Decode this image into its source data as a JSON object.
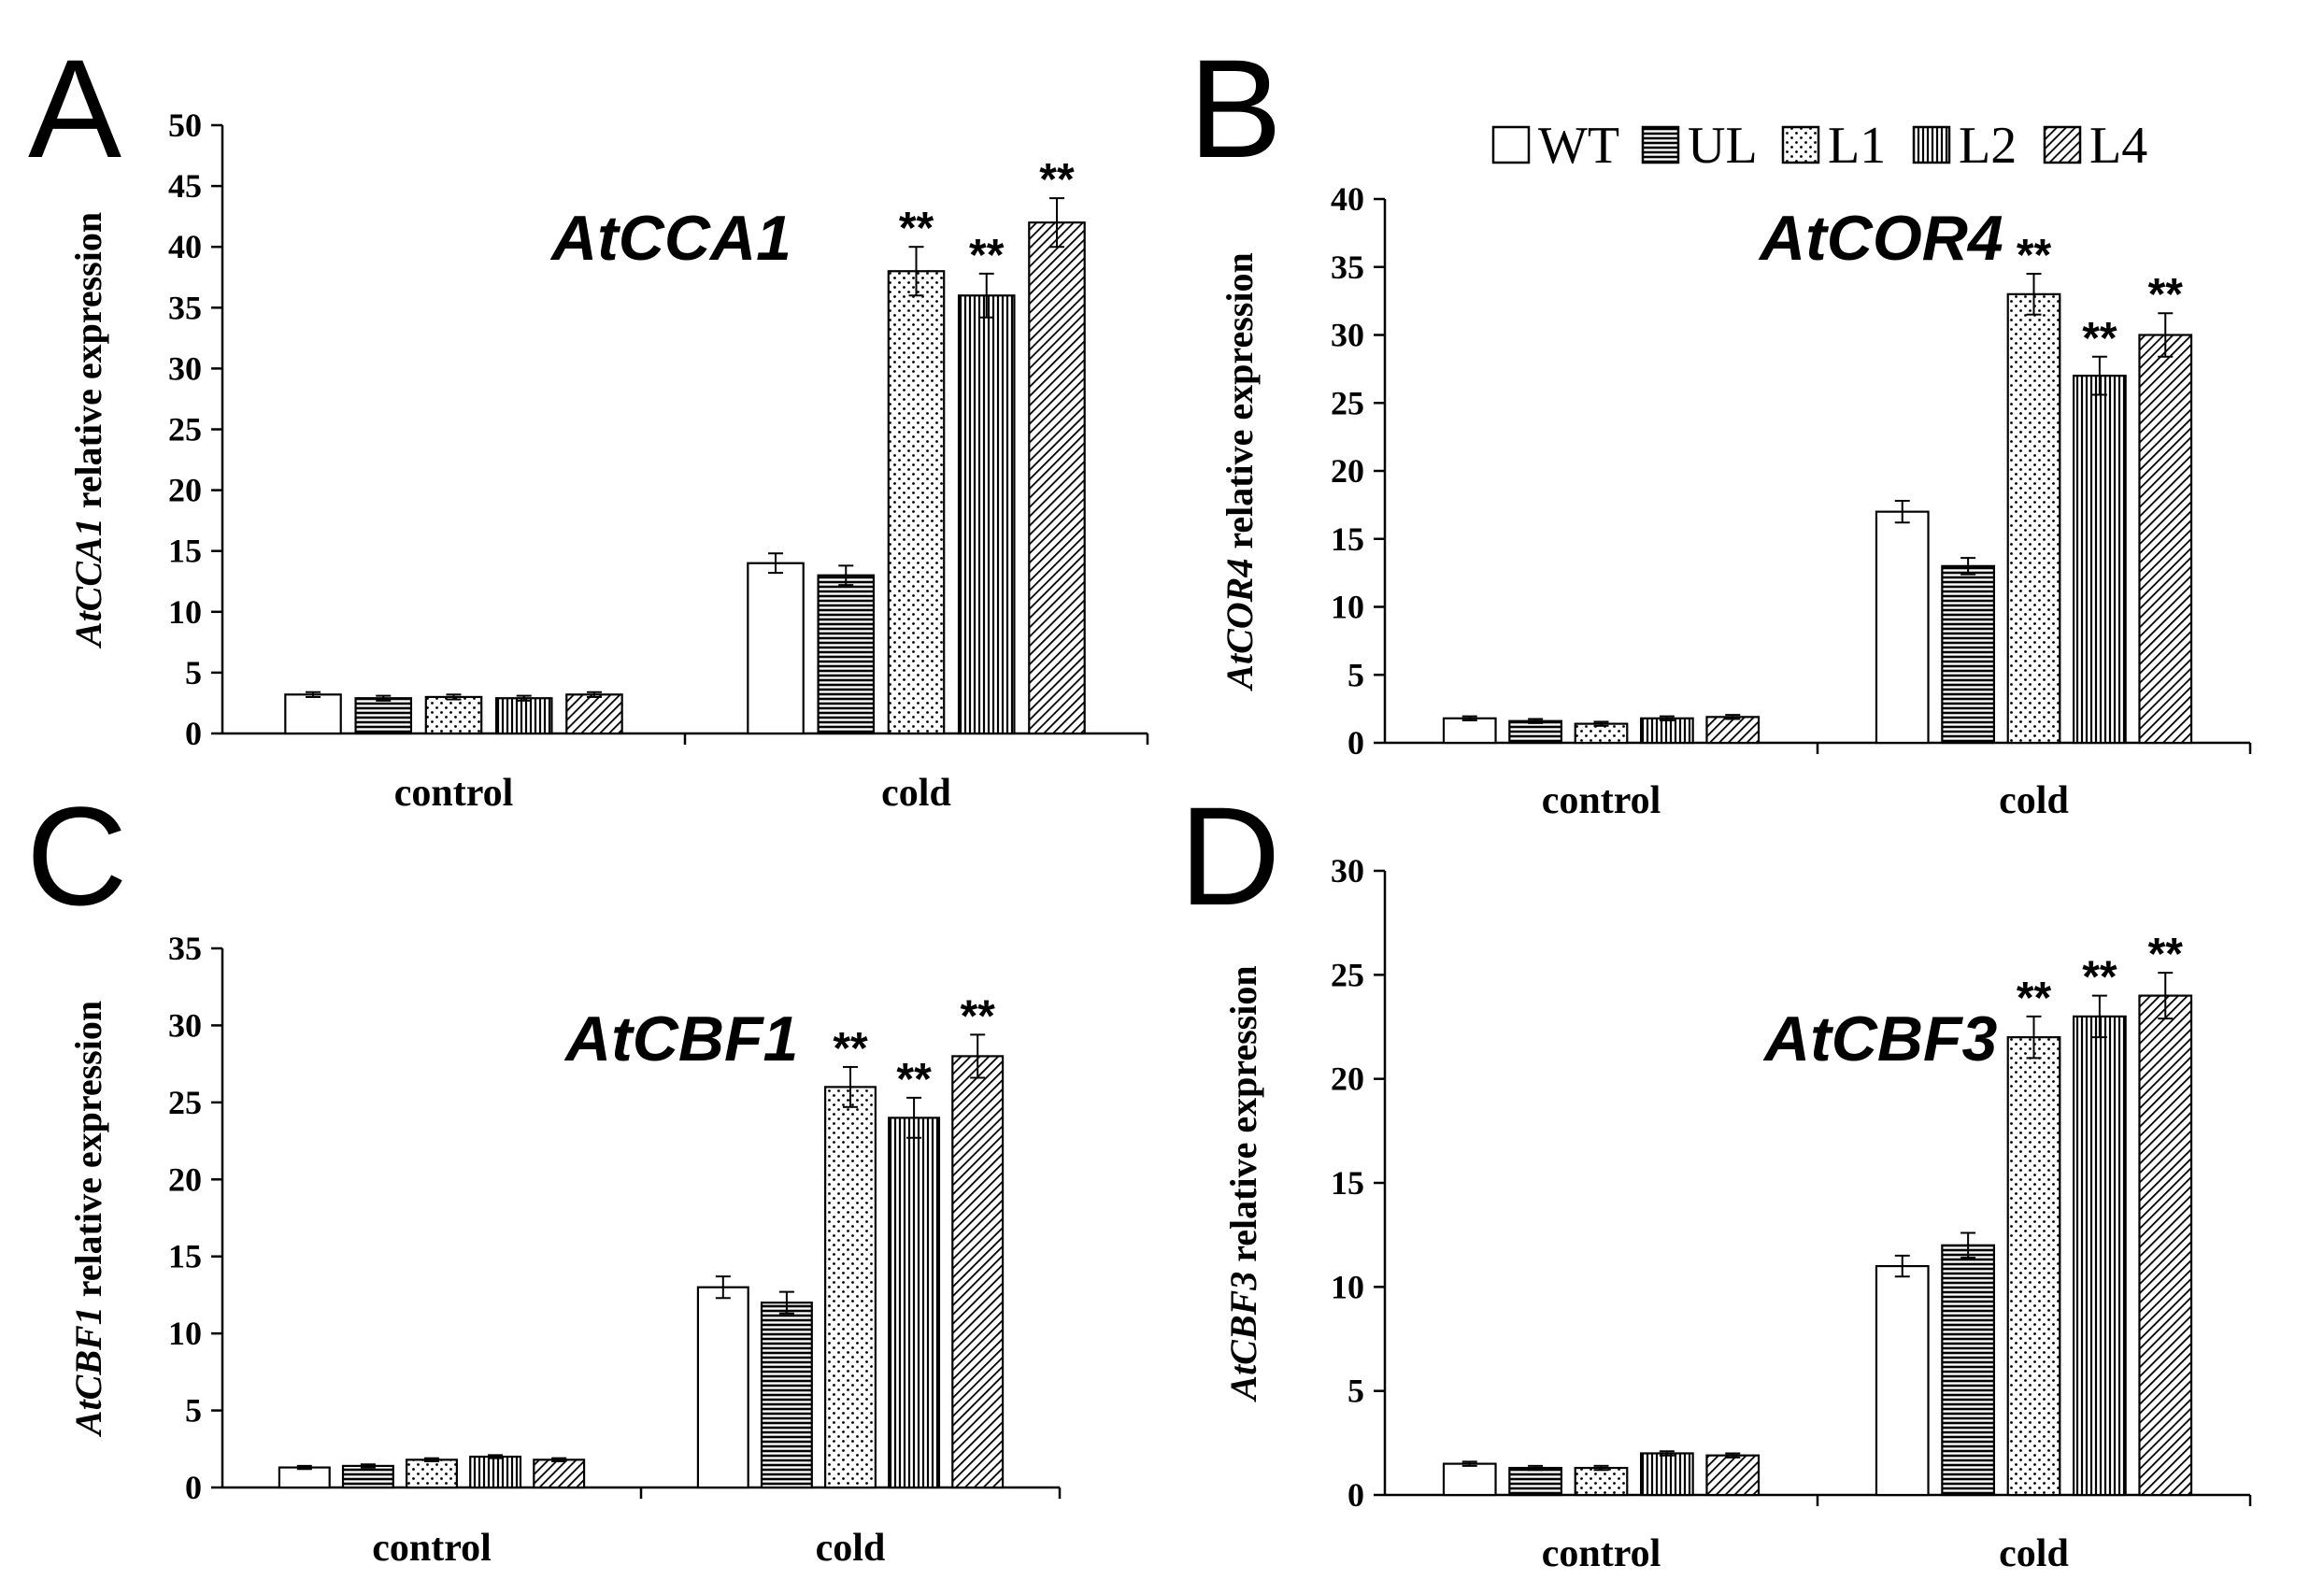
{
  "legend": [
    "WT",
    "UL",
    "L1",
    "L2",
    "L4"
  ],
  "chart_data": [
    {
      "panel": "A",
      "type": "bar",
      "title": "AtCCA1",
      "ylabel_gene": "AtCCA1",
      "ylabel_rest": " relative expression",
      "categories": [
        "control",
        "cold"
      ],
      "ylim": [
        0,
        50
      ],
      "yticks": [
        0,
        5,
        10,
        15,
        20,
        25,
        30,
        35,
        40,
        45,
        50
      ],
      "series": [
        {
          "name": "WT",
          "values": [
            3.2,
            14.0
          ],
          "errors": [
            0.2,
            0.8
          ],
          "sig": [
            "",
            ""
          ]
        },
        {
          "name": "UL",
          "values": [
            2.9,
            13.0
          ],
          "errors": [
            0.2,
            0.8
          ],
          "sig": [
            "",
            ""
          ]
        },
        {
          "name": "L1",
          "values": [
            3.0,
            38.0
          ],
          "errors": [
            0.2,
            2.0
          ],
          "sig": [
            "",
            "**"
          ]
        },
        {
          "name": "L2",
          "values": [
            2.9,
            36.0
          ],
          "errors": [
            0.2,
            1.8
          ],
          "sig": [
            "",
            "**"
          ]
        },
        {
          "name": "L4",
          "values": [
            3.2,
            42.0
          ],
          "errors": [
            0.2,
            2.0
          ],
          "sig": [
            "",
            "**"
          ]
        }
      ]
    },
    {
      "panel": "B",
      "type": "bar",
      "title": "AtCOR4",
      "ylabel_gene": "AtCOR4",
      "ylabel_rest": " relative expression",
      "categories": [
        "control",
        "cold"
      ],
      "ylim": [
        0,
        40
      ],
      "yticks": [
        0,
        5,
        10,
        15,
        20,
        25,
        30,
        35,
        40
      ],
      "series": [
        {
          "name": "WT",
          "values": [
            1.8,
            17.0
          ],
          "errors": [
            0.15,
            0.8
          ],
          "sig": [
            "",
            ""
          ]
        },
        {
          "name": "UL",
          "values": [
            1.6,
            13.0
          ],
          "errors": [
            0.15,
            0.6
          ],
          "sig": [
            "",
            ""
          ]
        },
        {
          "name": "L1",
          "values": [
            1.4,
            33.0
          ],
          "errors": [
            0.15,
            1.5
          ],
          "sig": [
            "",
            "**"
          ]
        },
        {
          "name": "L2",
          "values": [
            1.8,
            27.0
          ],
          "errors": [
            0.15,
            1.4
          ],
          "sig": [
            "",
            "**"
          ]
        },
        {
          "name": "L4",
          "values": [
            1.9,
            30.0
          ],
          "errors": [
            0.15,
            1.6
          ],
          "sig": [
            "",
            "**"
          ]
        }
      ]
    },
    {
      "panel": "C",
      "type": "bar",
      "title": "AtCBF1",
      "ylabel_gene": "AtCBF1",
      "ylabel_rest": " relative expression",
      "categories": [
        "control",
        "cold"
      ],
      "ylim": [
        0,
        35
      ],
      "yticks": [
        0,
        5,
        10,
        15,
        20,
        25,
        30,
        35
      ],
      "series": [
        {
          "name": "WT",
          "values": [
            1.3,
            13.0
          ],
          "errors": [
            0.1,
            0.7
          ],
          "sig": [
            "",
            ""
          ]
        },
        {
          "name": "UL",
          "values": [
            1.4,
            12.0
          ],
          "errors": [
            0.1,
            0.7
          ],
          "sig": [
            "",
            ""
          ]
        },
        {
          "name": "L1",
          "values": [
            1.8,
            26.0
          ],
          "errors": [
            0.1,
            1.3
          ],
          "sig": [
            "",
            "**"
          ]
        },
        {
          "name": "L2",
          "values": [
            2.0,
            24.0
          ],
          "errors": [
            0.1,
            1.3
          ],
          "sig": [
            "",
            "**"
          ]
        },
        {
          "name": "L4",
          "values": [
            1.8,
            28.0
          ],
          "errors": [
            0.1,
            1.4
          ],
          "sig": [
            "",
            "**"
          ]
        }
      ]
    },
    {
      "panel": "D",
      "type": "bar",
      "title": "AtCBF3",
      "ylabel_gene": "AtCBF3",
      "ylabel_rest": " relative expression",
      "categories": [
        "control",
        "cold"
      ],
      "ylim": [
        0,
        30
      ],
      "yticks": [
        0,
        5,
        10,
        15,
        20,
        25,
        30
      ],
      "series": [
        {
          "name": "WT",
          "values": [
            1.5,
            11.0
          ],
          "errors": [
            0.1,
            0.5
          ],
          "sig": [
            "",
            ""
          ]
        },
        {
          "name": "UL",
          "values": [
            1.3,
            12.0
          ],
          "errors": [
            0.1,
            0.6
          ],
          "sig": [
            "",
            ""
          ]
        },
        {
          "name": "L1",
          "values": [
            1.3,
            22.0
          ],
          "errors": [
            0.1,
            1.0
          ],
          "sig": [
            "",
            "**"
          ]
        },
        {
          "name": "L2",
          "values": [
            2.0,
            23.0
          ],
          "errors": [
            0.1,
            1.0
          ],
          "sig": [
            "",
            "**"
          ]
        },
        {
          "name": "L4",
          "values": [
            1.9,
            24.0
          ],
          "errors": [
            0.1,
            1.1
          ],
          "sig": [
            "",
            "**"
          ]
        }
      ]
    }
  ]
}
